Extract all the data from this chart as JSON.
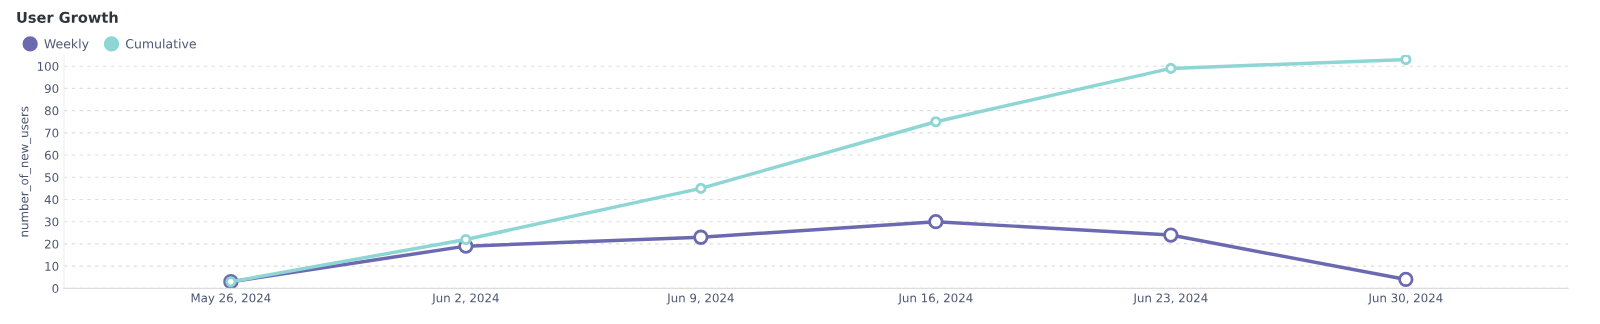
{
  "chart_data": {
    "type": "line",
    "title": "User Growth",
    "ylabel": "number_of_new_users",
    "categories": [
      "May 26, 2024",
      "Jun 2, 2024",
      "Jun 9, 2024",
      "Jun 16, 2024",
      "Jun 23, 2024",
      "Jun 30, 2024"
    ],
    "series": [
      {
        "name": "Weekly",
        "color": "#6b69b0",
        "values": [
          3,
          19,
          23,
          30,
          24,
          4
        ]
      },
      {
        "name": "Cumulative",
        "color": "#8dd6d4",
        "values": [
          3,
          22,
          45,
          75,
          99,
          103
        ]
      }
    ],
    "ylim": [
      0,
      105
    ],
    "yticks": [
      0,
      10,
      20,
      30,
      40,
      50,
      60,
      70,
      80,
      90,
      100
    ],
    "grid": "y",
    "legend": "top left",
    "marker": "circle",
    "line_style": "solid"
  }
}
